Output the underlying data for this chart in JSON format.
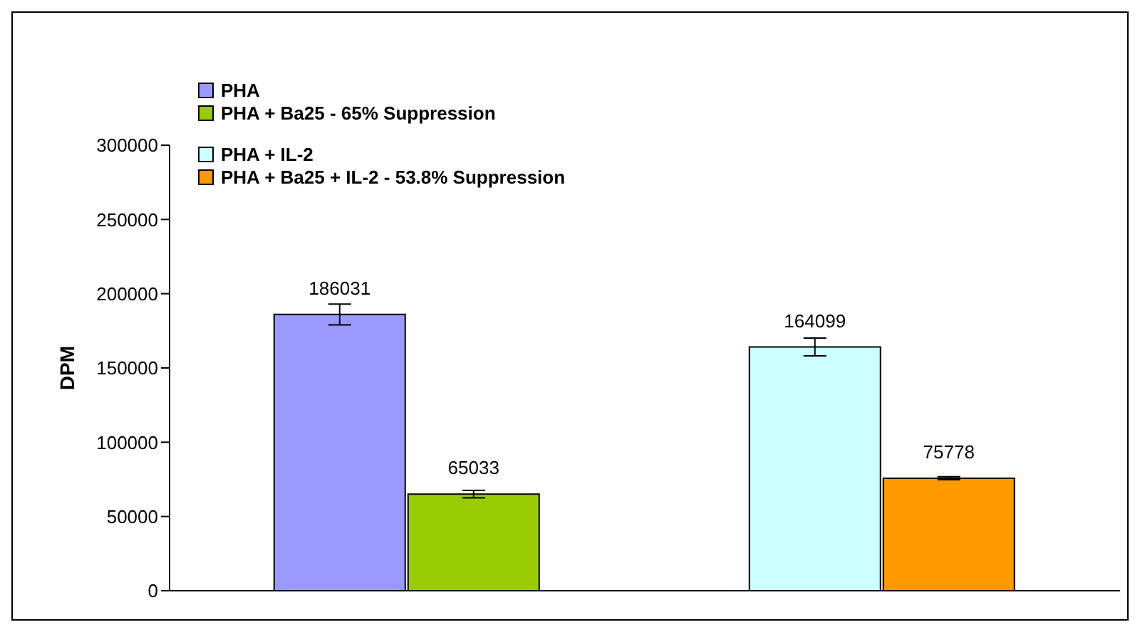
{
  "chart_data": {
    "type": "bar",
    "ylabel": "DPM",
    "categories": [
      null,
      null
    ],
    "series": [
      {
        "name": "PHA",
        "color": "#9999ff",
        "values": [
          186031,
          null
        ],
        "errors": [
          7000,
          null
        ]
      },
      {
        "name": "PHA + Ba25 - 65% Suppression",
        "color": "#99cc00",
        "values": [
          65033,
          null
        ],
        "errors": [
          2500,
          null
        ]
      },
      {
        "name": "PHA + IL-2",
        "color": "#ccffff",
        "values": [
          null,
          164099
        ],
        "errors": [
          null,
          6000
        ]
      },
      {
        "name": "PHA + Ba25 + IL-2 - 53.8% Suppression",
        "color": "#ff9900",
        "values": [
          null,
          75778
        ],
        "errors": [
          null,
          1000
        ]
      }
    ],
    "ylim": [
      0,
      300000
    ],
    "yticks": [
      0,
      50000,
      100000,
      150000,
      200000,
      250000,
      300000
    ],
    "legend": "top left",
    "data_labels": true
  }
}
